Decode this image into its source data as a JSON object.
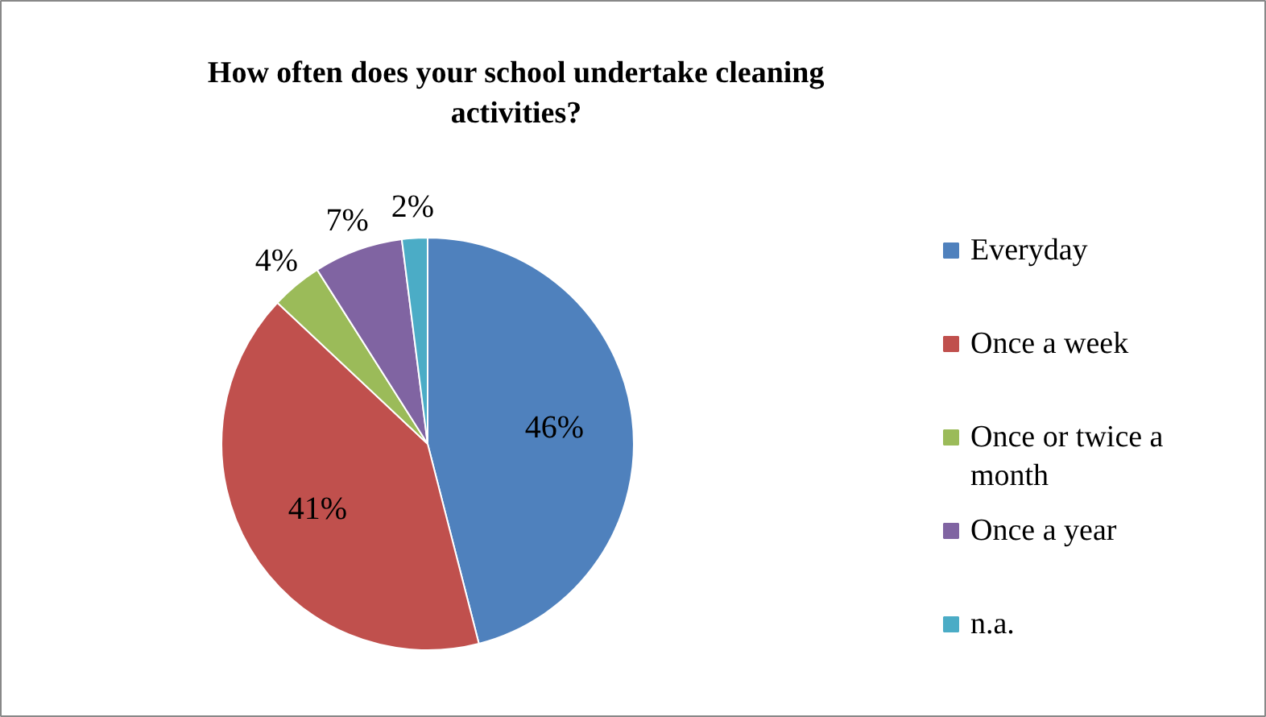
{
  "chart_data": {
    "type": "pie",
    "title": "How often does your school undertake cleaning activities?",
    "categories": [
      "Everyday",
      "Once a week",
      "Once or twice a month",
      "Once a year",
      "n.a."
    ],
    "values": [
      46,
      41,
      4,
      7,
      2
    ],
    "colors": [
      "#4f81bd",
      "#c0504d",
      "#9bbb59",
      "#8064a2",
      "#4bacc6"
    ],
    "value_labels": [
      "46%",
      "41%",
      "4%",
      "7%",
      "2%"
    ],
    "legend": "right"
  }
}
